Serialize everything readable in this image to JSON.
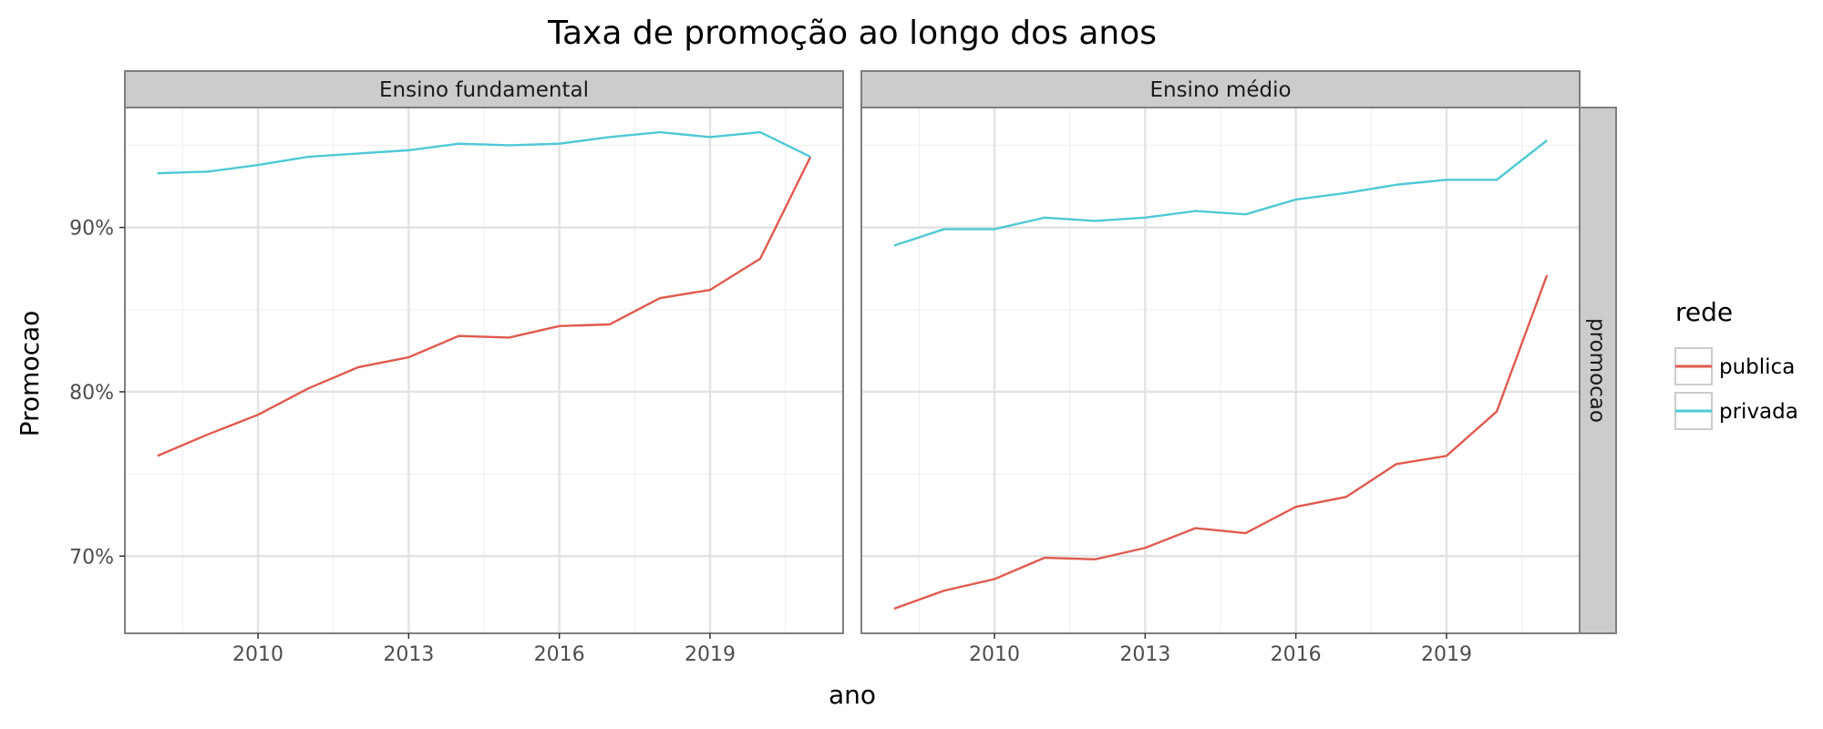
{
  "chart_data": {
    "type": "line",
    "title": "Taxa de promoção ao longo dos anos",
    "xlabel": "ano",
    "ylabel": "Promocao",
    "facet_row_label": "promocao",
    "x": [
      2008,
      2009,
      2010,
      2011,
      2012,
      2013,
      2014,
      2015,
      2016,
      2017,
      2018,
      2019,
      2020,
      2021
    ],
    "xticks": [
      2010,
      2013,
      2016,
      2019
    ],
    "yticks": [
      70,
      80,
      90
    ],
    "ytick_labels": [
      "70%",
      "80%",
      "90%"
    ],
    "xlim": [
      2007.35,
      2021.65
    ],
    "ylim": [
      65.3,
      97.3
    ],
    "grid": true,
    "legend": {
      "title": "rede",
      "placement": "right",
      "entries": [
        {
          "name": "publica",
          "color": "#e05a4e"
        },
        {
          "name": "privada",
          "color": "#4ec9d6"
        }
      ]
    },
    "panels": [
      {
        "label": "Ensino fundamental",
        "series": [
          {
            "name": "publica",
            "values": [
              76.1,
              77.4,
              78.6,
              80.2,
              81.5,
              82.1,
              83.4,
              83.3,
              84.0,
              84.1,
              85.7,
              86.2,
              88.1,
              94.3
            ]
          },
          {
            "name": "privada",
            "values": [
              93.3,
              93.4,
              93.8,
              94.3,
              94.5,
              94.7,
              95.1,
              95.0,
              95.1,
              95.5,
              95.8,
              95.5,
              95.8,
              94.3
            ]
          }
        ]
      },
      {
        "label": "Ensino médio",
        "series": [
          {
            "name": "publica",
            "values": [
              66.8,
              67.9,
              68.6,
              69.9,
              69.8,
              70.5,
              71.7,
              71.4,
              73.0,
              73.6,
              75.6,
              76.1,
              78.8,
              87.1
            ]
          },
          {
            "name": "privada",
            "values": [
              88.9,
              89.9,
              89.9,
              90.6,
              90.4,
              90.6,
              91.0,
              90.8,
              91.7,
              92.1,
              92.6,
              92.9,
              92.9,
              95.3
            ]
          }
        ]
      }
    ]
  }
}
